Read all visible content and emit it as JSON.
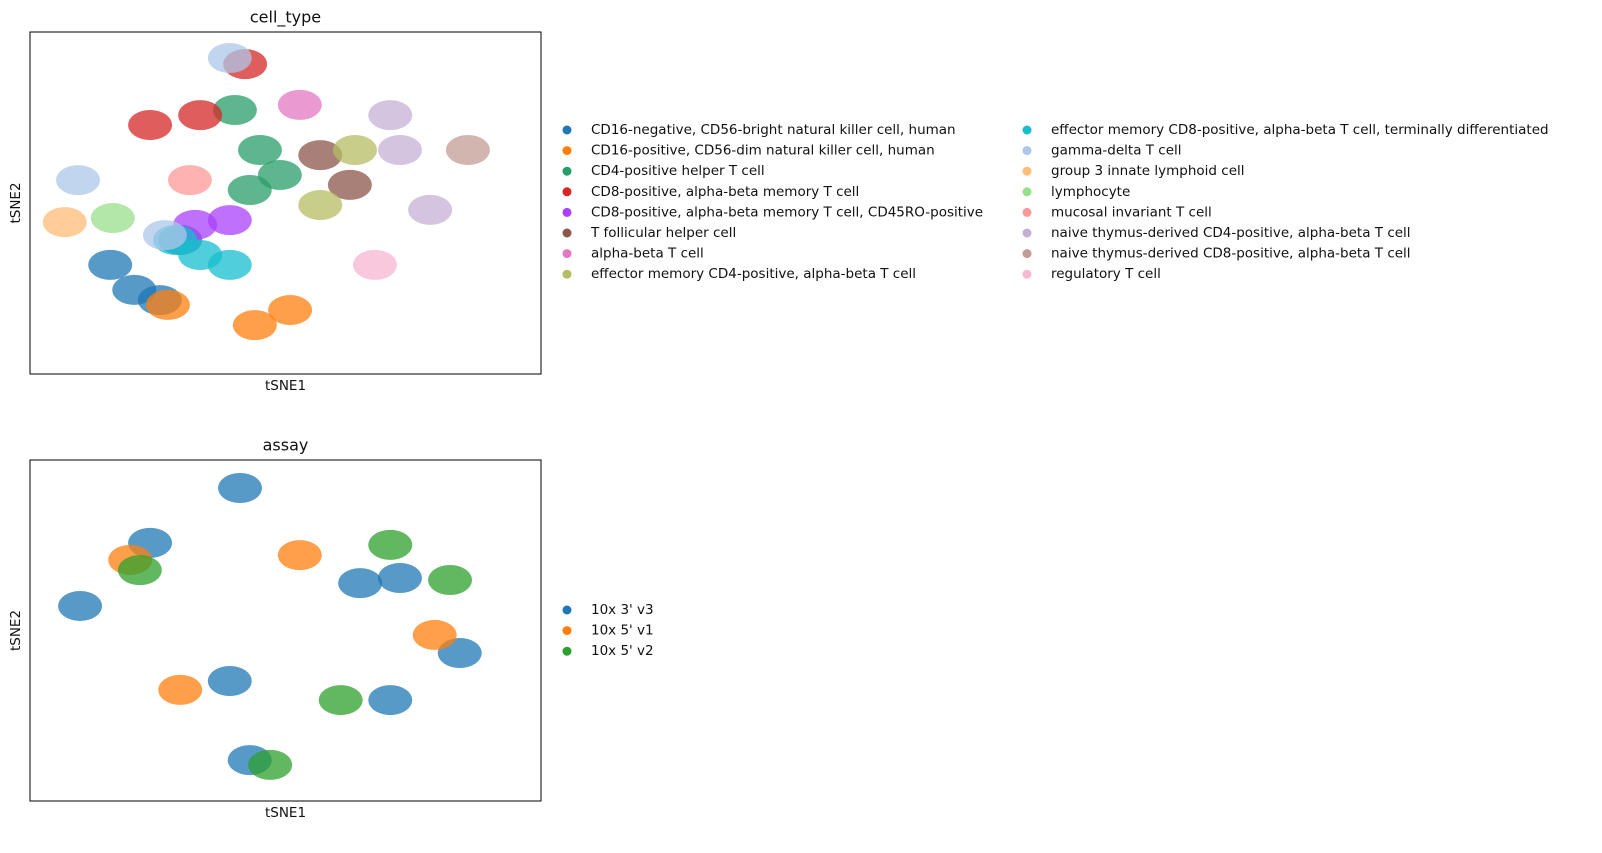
{
  "chart_data": [
    {
      "type": "scatter",
      "title": "cell_type",
      "x_label": "tSNE1",
      "y_label": "tSNE2",
      "xlim": [
        0,
        100
      ],
      "ylim": [
        0,
        100
      ],
      "legend": "right",
      "series": [
        {
          "name": "CD16-negative, CD56-bright natural killer cell, human",
          "color": "#1f77b4",
          "x": [
            15.7,
            20.4,
            25.4,
            29.4
          ],
          "y": [
            31.9,
            24.6,
            21.6,
            39.2
          ]
        },
        {
          "name": "CD16-positive, CD56-dim natural killer cell, human",
          "color": "#ff7f0e",
          "x": [
            44,
            50.9,
            27
          ],
          "y": [
            14.3,
            18.7,
            20.2
          ]
        },
        {
          "name": "CD4-positive helper T cell",
          "color": "#279e68",
          "x": [
            40.1,
            45,
            48.9,
            43
          ],
          "y": [
            77.2,
            65.5,
            58.2,
            53.8
          ]
        },
        {
          "name": "CD8-positive, alpha-beta memory T cell",
          "color": "#d62728",
          "x": [
            23.5,
            42.1,
            33.3
          ],
          "y": [
            72.8,
            90.6,
            75.7
          ]
        },
        {
          "name": "CD8-positive, alpha-beta memory T cell, CD45RO-positive",
          "color": "#aa40fc",
          "x": [
            39.1,
            32.3
          ],
          "y": [
            45,
            43.6
          ]
        },
        {
          "name": "T follicular helper cell",
          "color": "#8c564b",
          "x": [
            56.8,
            62.6
          ],
          "y": [
            64,
            55.3
          ]
        },
        {
          "name": "alpha-beta T cell",
          "color": "#e377c2",
          "x": [
            52.8
          ],
          "y": [
            78.7
          ]
        },
        {
          "name": "effector memory CD4-positive, alpha-beta T cell",
          "color": "#b5bd61",
          "x": [
            56.8,
            63.6
          ],
          "y": [
            49.4,
            65.5
          ]
        },
        {
          "name": "effector memory CD8-positive, alpha-beta T cell, terminally differentiated",
          "color": "#17becf",
          "x": [
            33.3,
            39.1,
            28.4
          ],
          "y": [
            34.8,
            31.9,
            39.2
          ]
        },
        {
          "name": "gamma-delta T cell",
          "color": "#aec7e8",
          "x": [
            9.4,
            39.1,
            26.4
          ],
          "y": [
            56.7,
            92.4,
            40.6
          ]
        },
        {
          "name": "group 3 innate lymphoid cell",
          "color": "#ffbb78",
          "x": [
            6.8
          ],
          "y": [
            44.4
          ]
        },
        {
          "name": "lymphocyte",
          "color": "#98df8a",
          "x": [
            16.2
          ],
          "y": [
            45.6
          ]
        },
        {
          "name": "mucosal invariant T cell",
          "color": "#ff9896",
          "x": [
            31.3
          ],
          "y": [
            56.7
          ]
        },
        {
          "name": "naive thymus-derived CD4-positive, alpha-beta T cell",
          "color": "#c5b0d5",
          "x": [
            72.4,
            78.3,
            70.5
          ],
          "y": [
            65.5,
            48,
            75.7
          ]
        },
        {
          "name": "naive thymus-derived CD8-positive, alpha-beta T cell",
          "color": "#c49c94",
          "x": [
            85.7
          ],
          "y": [
            65.5
          ]
        },
        {
          "name": "regulatory T cell",
          "color": "#f7b6d2",
          "x": [
            67.5
          ],
          "y": [
            31.9
          ]
        }
      ]
    },
    {
      "type": "scatter",
      "title": "assay",
      "x_label": "tSNE1",
      "y_label": "tSNE2",
      "xlim": [
        0,
        100
      ],
      "ylim": [
        0,
        100
      ],
      "legend": "right",
      "series": [
        {
          "name": "10x 3' v3",
          "color": "#1f77b4",
          "x": [
            23.5,
            41.1,
            64.6,
            72.4,
            84.1,
            43,
            39.1,
            70.5,
            9.8
          ],
          "y": [
            75.7,
            91.8,
            63.9,
            65.4,
            43.4,
            12,
            35.2,
            29.6,
            57.2
          ]
        },
        {
          "name": "10x 5' v1",
          "color": "#ff7f0e",
          "x": [
            79.2,
            52.8,
            19.6,
            29.4
          ],
          "y": [
            48.7,
            72.1,
            70.7,
            32.6
          ]
        },
        {
          "name": "10x 5' v2",
          "color": "#2ca02c",
          "x": [
            70.5,
            21.5,
            60.8,
            47,
            82.2
          ],
          "y": [
            75.1,
            67.7,
            29.6,
            10.6,
            64.8
          ]
        }
      ]
    }
  ]
}
